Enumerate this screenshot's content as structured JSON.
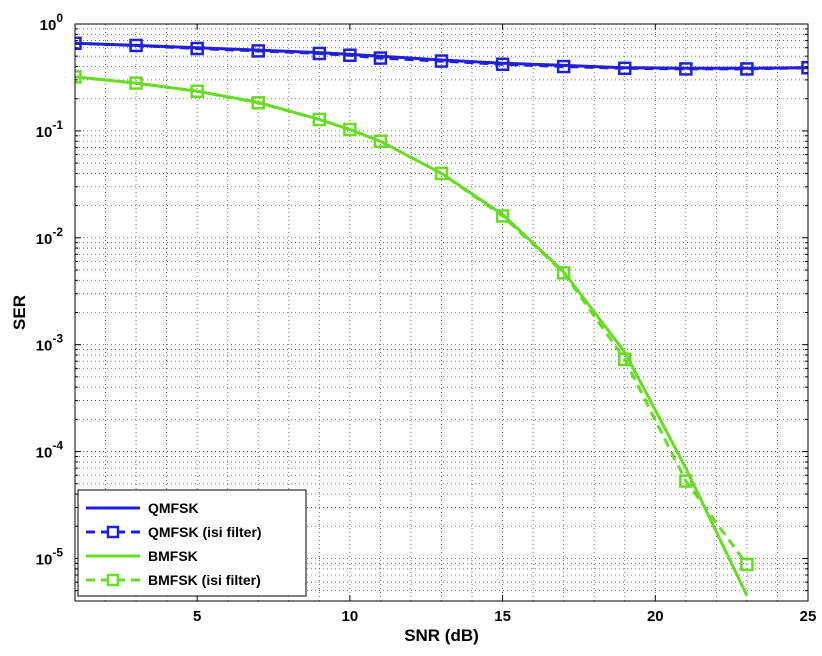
{
  "chart_data": {
    "type": "line",
    "title": "",
    "xlabel": "SNR (dB)",
    "ylabel": "SER",
    "xlim": [
      1,
      25
    ],
    "ylim": [
      4e-06,
      1
    ],
    "yscale": "log",
    "grid": true,
    "legend_position": "bottom-left",
    "x_ticks": [
      5,
      10,
      15,
      20,
      25
    ],
    "y_ticks": [
      {
        "value": 1,
        "base": "10",
        "exp": "0"
      },
      {
        "value": 0.1,
        "base": "10",
        "exp": "-1"
      },
      {
        "value": 0.01,
        "base": "10",
        "exp": "-2"
      },
      {
        "value": 0.001,
        "base": "10",
        "exp": "-3"
      },
      {
        "value": 0.0001,
        "base": "10",
        "exp": "-4"
      },
      {
        "value": 1e-05,
        "base": "10",
        "exp": "-5"
      }
    ],
    "series": [
      {
        "name": "QMFSK",
        "color": "#2020d8",
        "dashed": false,
        "marker": "none",
        "x": [
          1,
          3,
          5,
          7,
          9,
          10,
          11,
          13,
          15,
          17,
          19,
          21,
          23,
          25
        ],
        "y": [
          0.66,
          0.63,
          0.6,
          0.57,
          0.54,
          0.52,
          0.5,
          0.46,
          0.43,
          0.41,
          0.39,
          0.385,
          0.385,
          0.39
        ]
      },
      {
        "name": "QMFSK (isi filter)",
        "color": "#2020d8",
        "dashed": true,
        "marker": "square",
        "x": [
          1,
          3,
          5,
          7,
          9,
          10,
          11,
          13,
          15,
          17,
          19,
          21,
          23,
          25
        ],
        "y": [
          0.66,
          0.63,
          0.59,
          0.56,
          0.53,
          0.51,
          0.48,
          0.45,
          0.42,
          0.4,
          0.385,
          0.38,
          0.38,
          0.39
        ]
      },
      {
        "name": "BMFSK",
        "color": "#66dd22",
        "dashed": false,
        "marker": "none",
        "x": [
          1,
          3,
          5,
          7,
          9,
          10,
          11,
          13,
          15,
          17,
          19,
          21,
          23
        ],
        "y": [
          0.32,
          0.28,
          0.235,
          0.185,
          0.128,
          0.103,
          0.08,
          0.04,
          0.0165,
          0.0048,
          0.00085,
          7e-05,
          4.5e-06
        ]
      },
      {
        "name": "BMFSK (isi filter)",
        "color": "#66dd22",
        "dashed": true,
        "marker": "square",
        "x": [
          1,
          3,
          5,
          7,
          9,
          10,
          11,
          13,
          15,
          17,
          19,
          21,
          23
        ],
        "y": [
          0.32,
          0.28,
          0.235,
          0.183,
          0.128,
          0.103,
          0.08,
          0.04,
          0.016,
          0.0047,
          0.00073,
          5.3e-05,
          8.8e-06
        ]
      }
    ]
  }
}
